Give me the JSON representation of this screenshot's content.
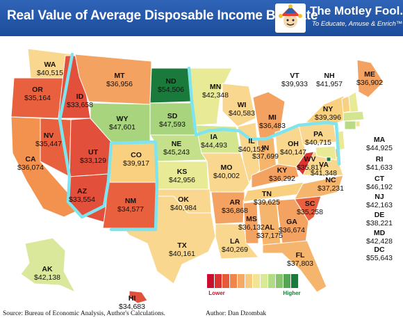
{
  "title": "Real Value of Average Disposable Income By State",
  "brand": {
    "name": "The Motley Fool.",
    "tagline": "To Educate, Amuse & Enrich™",
    "logo_icon": "jester-hat-logo-icon"
  },
  "legend": {
    "low_label": "Lower",
    "high_label": "Higher",
    "colors": [
      "#c8102e",
      "#d9342f",
      "#e65a38",
      "#f0864a",
      "#f6a964",
      "#f9c980",
      "#f2e492",
      "#d8ea96",
      "#b0dc86",
      "#86c56e",
      "#54a654",
      "#1a7a3c"
    ]
  },
  "source": "Source: Bureau of Economic Analysis, Author's Calculations.",
  "author": "Author: Dan Dzombak",
  "states": [
    {
      "abbr": "WA",
      "value": "$40,515",
      "color": "#f9d78e"
    },
    {
      "abbr": "OR",
      "value": "$35,164",
      "color": "#e8603e"
    },
    {
      "abbr": "CA",
      "value": "$36,074",
      "color": "#f2924e"
    },
    {
      "abbr": "ID",
      "value": "$33,658",
      "color": "#e24f3a"
    },
    {
      "abbr": "NV",
      "value": "$35,447",
      "color": "#e8603e"
    },
    {
      "abbr": "UT",
      "value": "$33,129",
      "color": "#e24f3a"
    },
    {
      "abbr": "AZ",
      "value": "$33,554",
      "color": "#e24f3a"
    },
    {
      "abbr": "MT",
      "value": "$36,956",
      "color": "#f3a261"
    },
    {
      "abbr": "WY",
      "value": "$47,601",
      "color": "#a9d47e"
    },
    {
      "abbr": "CO",
      "value": "$39,917",
      "color": "#f9d080"
    },
    {
      "abbr": "NM",
      "value": "$34,577",
      "color": "#e8603e"
    },
    {
      "abbr": "ND",
      "value": "$54,506",
      "color": "#1a7a3c"
    },
    {
      "abbr": "SD",
      "value": "$47,593",
      "color": "#a9d47e"
    },
    {
      "abbr": "NE",
      "value": "$45,243",
      "color": "#c4e08a"
    },
    {
      "abbr": "KS",
      "value": "$42,956",
      "color": "#e9ea96"
    },
    {
      "abbr": "OK",
      "value": "$40,984",
      "color": "#f9d78e"
    },
    {
      "abbr": "TX",
      "value": "$40,161",
      "color": "#f9d78e"
    },
    {
      "abbr": "MN",
      "value": "$42,348",
      "color": "#e9ea96"
    },
    {
      "abbr": "IA",
      "value": "$44,493",
      "color": "#d4e590"
    },
    {
      "abbr": "MO",
      "value": "$40,002",
      "color": "#f9d78e"
    },
    {
      "abbr": "AR",
      "value": "$36,868",
      "color": "#f3a261"
    },
    {
      "abbr": "LA",
      "value": "$40,269",
      "color": "#f9d78e"
    },
    {
      "abbr": "WI",
      "value": "$40,583",
      "color": "#f9d78e"
    },
    {
      "abbr": "IL",
      "value": "$40,152",
      "color": "#f9d78e"
    },
    {
      "abbr": "MI",
      "value": "$36,483",
      "color": "#f3a261"
    },
    {
      "abbr": "IN",
      "value": "$37,699",
      "color": "#f6b56c"
    },
    {
      "abbr": "OH",
      "value": "$40,147",
      "color": "#f9d78e"
    },
    {
      "abbr": "KY",
      "value": "$36,292",
      "color": "#f3a261"
    },
    {
      "abbr": "TN",
      "value": "$39,625",
      "color": "#f9d080"
    },
    {
      "abbr": "MS",
      "value": "$36,132",
      "color": "#f3a261"
    },
    {
      "abbr": "AL",
      "value": "$37,175",
      "color": "#f6b56c"
    },
    {
      "abbr": "GA",
      "value": "$36,674",
      "color": "#f3a261"
    },
    {
      "abbr": "FL",
      "value": "$37,803",
      "color": "#f6b56c"
    },
    {
      "abbr": "SC",
      "value": "$35,258",
      "color": "#e8603e"
    },
    {
      "abbr": "NC",
      "value": "$37,231",
      "color": "#f6b56c"
    },
    {
      "abbr": "WV",
      "value": "$35,817",
      "color": "#d9342f"
    },
    {
      "abbr": "VA",
      "value": "$41,348",
      "color": "#f9d78e"
    },
    {
      "abbr": "PA",
      "value": "$40,715",
      "color": "#f9d78e"
    },
    {
      "abbr": "NY",
      "value": "$39,396",
      "color": "#f9d080"
    },
    {
      "abbr": "ME",
      "value": "$36,902",
      "color": "#f3a261"
    },
    {
      "abbr": "VT",
      "value": "$39,933",
      "color": "#f9d080"
    },
    {
      "abbr": "NH",
      "value": "$41,957",
      "color": "#e9ea96"
    },
    {
      "abbr": "MA",
      "value": "$44,925",
      "color": "#d4e590"
    },
    {
      "abbr": "RI",
      "value": "$41,633",
      "color": "#f2e492"
    },
    {
      "abbr": "CT",
      "value": "$46,192",
      "color": "#b8da84"
    },
    {
      "abbr": "NJ",
      "value": "$42,163",
      "color": "#e9ea96"
    },
    {
      "abbr": "DE",
      "value": "$38,221",
      "color": "#f6b56c"
    },
    {
      "abbr": "MD",
      "value": "$42,428",
      "color": "#e9ea96"
    },
    {
      "abbr": "DC",
      "value": "$55,643",
      "color": "#1a7a3c"
    },
    {
      "abbr": "AK",
      "value": "$42,138",
      "color": "#d9e89a"
    },
    {
      "abbr": "HI",
      "value": "$34,683",
      "color": "#e24f3a"
    }
  ]
}
